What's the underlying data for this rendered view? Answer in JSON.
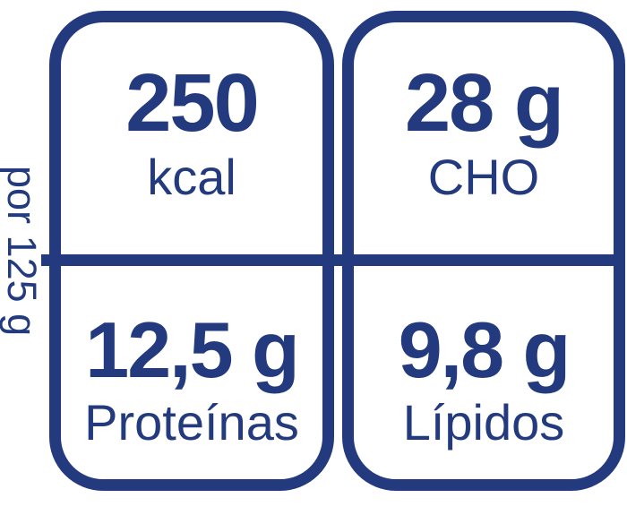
{
  "colors": {
    "accent": "#233b7e",
    "background": "#ffffff"
  },
  "portion": {
    "label": "por 125 g"
  },
  "panel": {
    "cells": {
      "energy": {
        "value": "250",
        "label": "kcal"
      },
      "carbohydrates": {
        "value": "28 g",
        "label": "CHO"
      },
      "proteins": {
        "value": "12,5 g",
        "label": "Proteínas"
      },
      "lipids": {
        "value": "9,8 g",
        "label": "Lípidos"
      }
    }
  }
}
